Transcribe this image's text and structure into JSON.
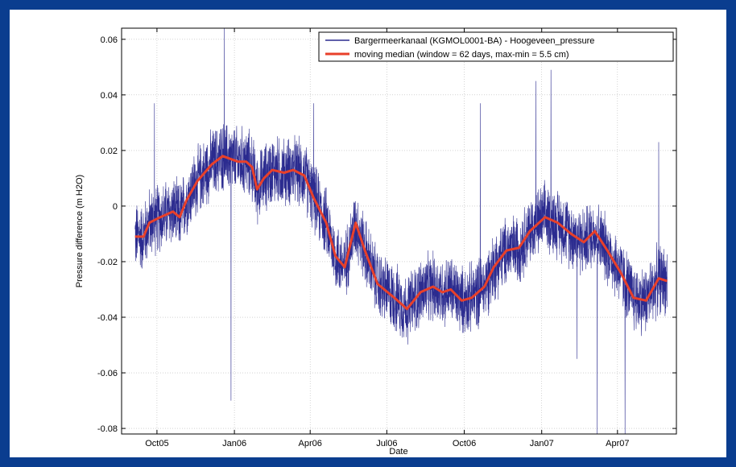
{
  "chart_data": {
    "type": "line",
    "xlabel": "Date",
    "ylabel": "Pressure difference (m H2O)",
    "x_range": [
      "2005-08-20",
      "2007-06-10"
    ],
    "ylim": [
      -0.082,
      0.064
    ],
    "grid": true,
    "legend_position": "top-right",
    "x_ticks": [
      {
        "date": "2005-10-01",
        "label": "Oct05"
      },
      {
        "date": "2006-01-01",
        "label": "Jan06"
      },
      {
        "date": "2006-04-01",
        "label": "Apr06"
      },
      {
        "date": "2006-07-01",
        "label": "Jul06"
      },
      {
        "date": "2006-10-01",
        "label": "Oct06"
      },
      {
        "date": "2007-01-01",
        "label": "Jan07"
      },
      {
        "date": "2007-04-01",
        "label": "Apr07"
      }
    ],
    "y_ticks": [
      {
        "value": 0.06,
        "label": "0.06"
      },
      {
        "value": 0.04,
        "label": "0.04"
      },
      {
        "value": 0.02,
        "label": "0.02"
      },
      {
        "value": 0,
        "label": "0"
      },
      {
        "value": -0.02,
        "label": "-0.02"
      },
      {
        "value": -0.04,
        "label": "-0.04"
      },
      {
        "value": -0.06,
        "label": "-0.06"
      },
      {
        "value": -0.08,
        "label": "-0.08"
      }
    ],
    "series": [
      {
        "name": "Bargermeerkanaal (KGMOL0001-BA) - Hoogeveen_pressure",
        "color": "#2b2b8f",
        "style": "noisy",
        "noise_amplitude": 0.012,
        "baseline": "moving median",
        "spikes": [
          {
            "x": "2005-09-28",
            "y": 0.037
          },
          {
            "x": "2005-12-20",
            "y": 0.064
          },
          {
            "x": "2005-12-28",
            "y": -0.07
          },
          {
            "x": "2006-04-05",
            "y": 0.037
          },
          {
            "x": "2006-10-20",
            "y": 0.037
          },
          {
            "x": "2006-12-25",
            "y": 0.045
          },
          {
            "x": "2007-01-12",
            "y": 0.049
          },
          {
            "x": "2007-02-12",
            "y": -0.055
          },
          {
            "x": "2007-03-08",
            "y": -0.082
          },
          {
            "x": "2007-04-10",
            "y": -0.082
          },
          {
            "x": "2007-05-20",
            "y": 0.023
          }
        ]
      },
      {
        "name": "moving median (window = 62 days, max-min = 5.5 cm)",
        "color": "#e8402a",
        "points": [
          {
            "x": "2005-09-05",
            "y": -0.011
          },
          {
            "x": "2005-09-15",
            "y": -0.011
          },
          {
            "x": "2005-09-22",
            "y": -0.006
          },
          {
            "x": "2005-10-05",
            "y": -0.004
          },
          {
            "x": "2005-10-20",
            "y": -0.002
          },
          {
            "x": "2005-10-28",
            "y": -0.004
          },
          {
            "x": "2005-11-05",
            "y": 0.002
          },
          {
            "x": "2005-11-18",
            "y": 0.009
          },
          {
            "x": "2005-12-05",
            "y": 0.015
          },
          {
            "x": "2005-12-18",
            "y": 0.018
          },
          {
            "x": "2006-01-05",
            "y": 0.016
          },
          {
            "x": "2006-01-15",
            "y": 0.016
          },
          {
            "x": "2006-01-22",
            "y": 0.014
          },
          {
            "x": "2006-01-28",
            "y": 0.006
          },
          {
            "x": "2006-02-05",
            "y": 0.01
          },
          {
            "x": "2006-02-15",
            "y": 0.013
          },
          {
            "x": "2006-03-01",
            "y": 0.012
          },
          {
            "x": "2006-03-12",
            "y": 0.013
          },
          {
            "x": "2006-03-25",
            "y": 0.011
          },
          {
            "x": "2006-04-05",
            "y": 0.003
          },
          {
            "x": "2006-04-20",
            "y": -0.006
          },
          {
            "x": "2006-05-01",
            "y": -0.018
          },
          {
            "x": "2006-05-12",
            "y": -0.022
          },
          {
            "x": "2006-05-25",
            "y": -0.006
          },
          {
            "x": "2006-06-05",
            "y": -0.016
          },
          {
            "x": "2006-06-20",
            "y": -0.028
          },
          {
            "x": "2006-07-10",
            "y": -0.033
          },
          {
            "x": "2006-07-25",
            "y": -0.037
          },
          {
            "x": "2006-08-10",
            "y": -0.031
          },
          {
            "x": "2006-08-25",
            "y": -0.029
          },
          {
            "x": "2006-09-05",
            "y": -0.031
          },
          {
            "x": "2006-09-15",
            "y": -0.03
          },
          {
            "x": "2006-09-28",
            "y": -0.034
          },
          {
            "x": "2006-10-10",
            "y": -0.033
          },
          {
            "x": "2006-10-25",
            "y": -0.029
          },
          {
            "x": "2006-11-05",
            "y": -0.022
          },
          {
            "x": "2006-11-20",
            "y": -0.016
          },
          {
            "x": "2006-12-05",
            "y": -0.015
          },
          {
            "x": "2006-12-18",
            "y": -0.009
          },
          {
            "x": "2007-01-05",
            "y": -0.004
          },
          {
            "x": "2007-01-20",
            "y": -0.006
          },
          {
            "x": "2007-02-05",
            "y": -0.01
          },
          {
            "x": "2007-02-20",
            "y": -0.013
          },
          {
            "x": "2007-03-05",
            "y": -0.009
          },
          {
            "x": "2007-03-20",
            "y": -0.016
          },
          {
            "x": "2007-04-05",
            "y": -0.024
          },
          {
            "x": "2007-04-20",
            "y": -0.033
          },
          {
            "x": "2007-05-05",
            "y": -0.034
          },
          {
            "x": "2007-05-20",
            "y": -0.026
          },
          {
            "x": "2007-05-30",
            "y": -0.027
          }
        ]
      }
    ]
  }
}
